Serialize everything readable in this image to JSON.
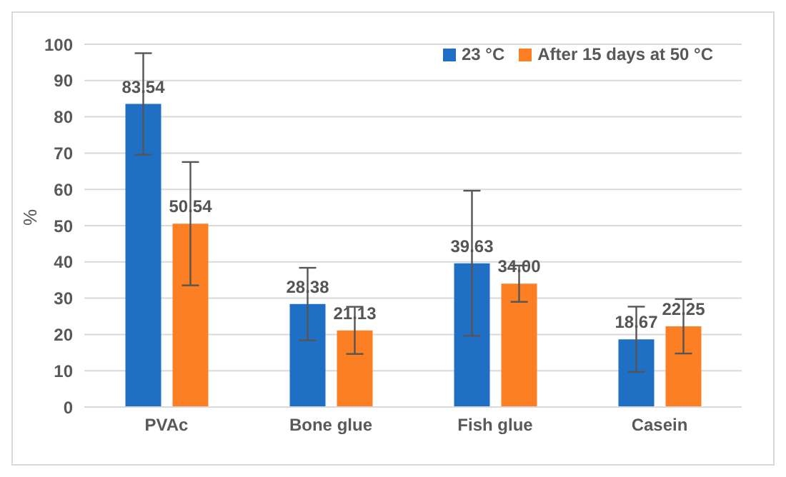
{
  "chart_data": {
    "type": "bar",
    "ylabel": "%",
    "categories": [
      "PVAc",
      "Bone glue",
      "Fish glue",
      "Casein"
    ],
    "series": [
      {
        "name": "23 °C",
        "color": "#1f6fc5",
        "values": [
          83.54,
          28.38,
          39.63,
          18.67
        ],
        "value_labels": [
          "83.54",
          "28.38",
          "39.63",
          "18.67"
        ],
        "errors": [
          14,
          10,
          20,
          9
        ]
      },
      {
        "name": "After 15 days at 50 °C",
        "color": "#fd7f23",
        "values": [
          50.54,
          21.13,
          34.0,
          22.25
        ],
        "value_labels": [
          "50.54",
          "21.13",
          "34.00",
          "22.25"
        ],
        "errors": [
          17,
          6.5,
          5,
          7.5
        ]
      }
    ],
    "ylim": [
      0,
      100
    ],
    "yticks": [
      0,
      10,
      20,
      30,
      40,
      50,
      60,
      70,
      80,
      90,
      100
    ],
    "grid": "y",
    "legend": "top right"
  }
}
